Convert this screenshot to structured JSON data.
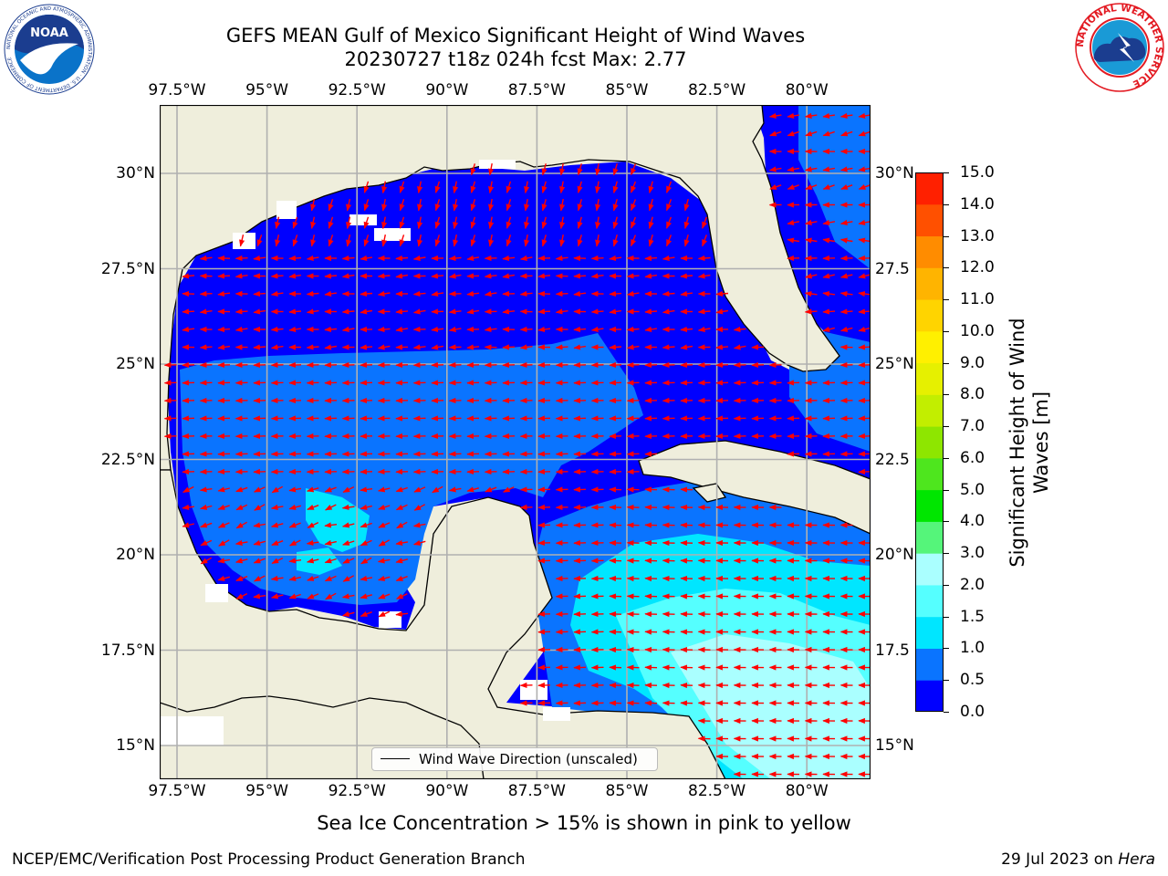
{
  "title_line1": "GEFS MEAN Gulf of Mexico Significant Height of Wind Waves",
  "title_line2": "20230727 t18z 024h fcst   Max: 2.77",
  "lon_ticks": [
    "97.5°W",
    "95°W",
    "92.5°W",
    "90°W",
    "87.5°W",
    "85°W",
    "82.5°W",
    "80°W"
  ],
  "lat_ticks_left": [
    "30°N",
    "27.5°N",
    "25°N",
    "22.5°N",
    "20°N",
    "17.5°N",
    "15°N"
  ],
  "lat_ticks_right": [
    "30°N",
    "27.5",
    "25°N",
    "22.5",
    "20°N",
    "17.5",
    "15°N"
  ],
  "legend_label": "Wind Wave Direction (unscaled)",
  "colorbar": {
    "label_line1": "Significant Height of Wind",
    "label_line2": "Waves [m]",
    "ticks": [
      "0.0",
      "0.5",
      "1.0",
      "1.5",
      "2.0",
      "3.0",
      "4.0",
      "5.0",
      "6.0",
      "7.0",
      "8.0",
      "9.0",
      "10.0",
      "11.0",
      "12.0",
      "13.0",
      "14.0",
      "15.0"
    ],
    "colors": [
      "#0000ff",
      "#0a74ff",
      "#00e6ff",
      "#55ffff",
      "#aaffff",
      "#55f57a",
      "#00e600",
      "#4ee61e",
      "#8ee600",
      "#c2ee00",
      "#e6f000",
      "#fff000",
      "#ffd400",
      "#ffb400",
      "#ff8c00",
      "#ff5000",
      "#ff2000",
      "#ff0000"
    ]
  },
  "footnote": "Sea Ice Concentration > 15% is shown in pink to yellow",
  "credit": "NCEP/EMC/Verification Post Processing Product Generation Branch",
  "date_text": "29 Jul 2023 on ",
  "date_host": "Hera",
  "logos": {
    "noaa_text": "NOAA",
    "noaa_ring": "NATIONAL OCEANIC AND ATMOSPHERIC ADMINISTRATION · U.S. DEPARTMENT OF COMMERCE",
    "nws_ring": "NATIONAL WEATHER SERVICE"
  },
  "colors": {
    "land": "#efeedc",
    "grid": "#b0b0b0",
    "arrow": "#ff0000",
    "coast": "#000000"
  }
}
